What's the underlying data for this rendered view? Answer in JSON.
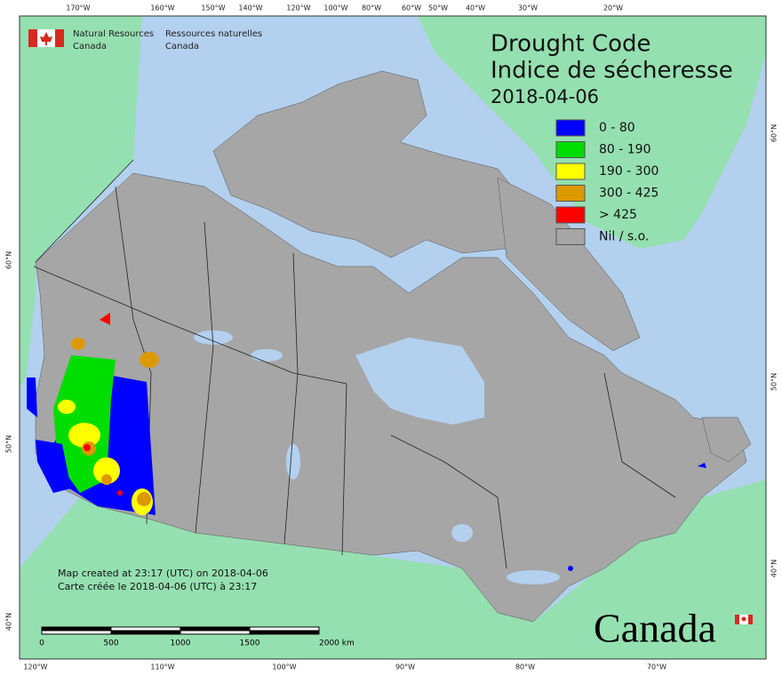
{
  "agency_en": [
    "Natural Resources",
    "Canada"
  ],
  "agency_fr": [
    "Ressources naturelles",
    "Canada"
  ],
  "title": [
    "Drought Code",
    "Indice de sécheresse"
  ],
  "date": "2018-04-06",
  "legend": [
    {
      "label": "0 - 80",
      "color": "#0000ff"
    },
    {
      "label": "80 - 190",
      "color": "#00dd00"
    },
    {
      "label": "190 - 300",
      "color": "#ffff00"
    },
    {
      "label": "300 - 425",
      "color": "#dd9900"
    },
    {
      "label": "> 425",
      "color": "#ff0000"
    },
    {
      "label": "Nil / s.o.",
      "color": "#a6a6a6"
    }
  ],
  "notes": [
    "Map created at 23:17 (UTC) on 2018-04-06",
    "Carte créée le 2018-04-06 (UTC) à 23:17"
  ],
  "scale_labels": [
    "0",
    "500",
    "1000",
    "1500",
    "2000 km"
  ],
  "graticule": {
    "top": [
      "170°W",
      "160°W",
      "150°W",
      "140°W",
      "120°W",
      "100°W",
      "80°W",
      "60°W",
      "50°W",
      "40°W",
      "30°W",
      "20°W"
    ],
    "bottom": [
      "120°W",
      "110°W",
      "100°W",
      "90°W",
      "80°W",
      "70°W"
    ],
    "left": [
      "60°N",
      "50°N",
      "40°N"
    ],
    "right": [
      "60°N",
      "50°N",
      "40°N"
    ]
  },
  "wordmark": "Canada"
}
